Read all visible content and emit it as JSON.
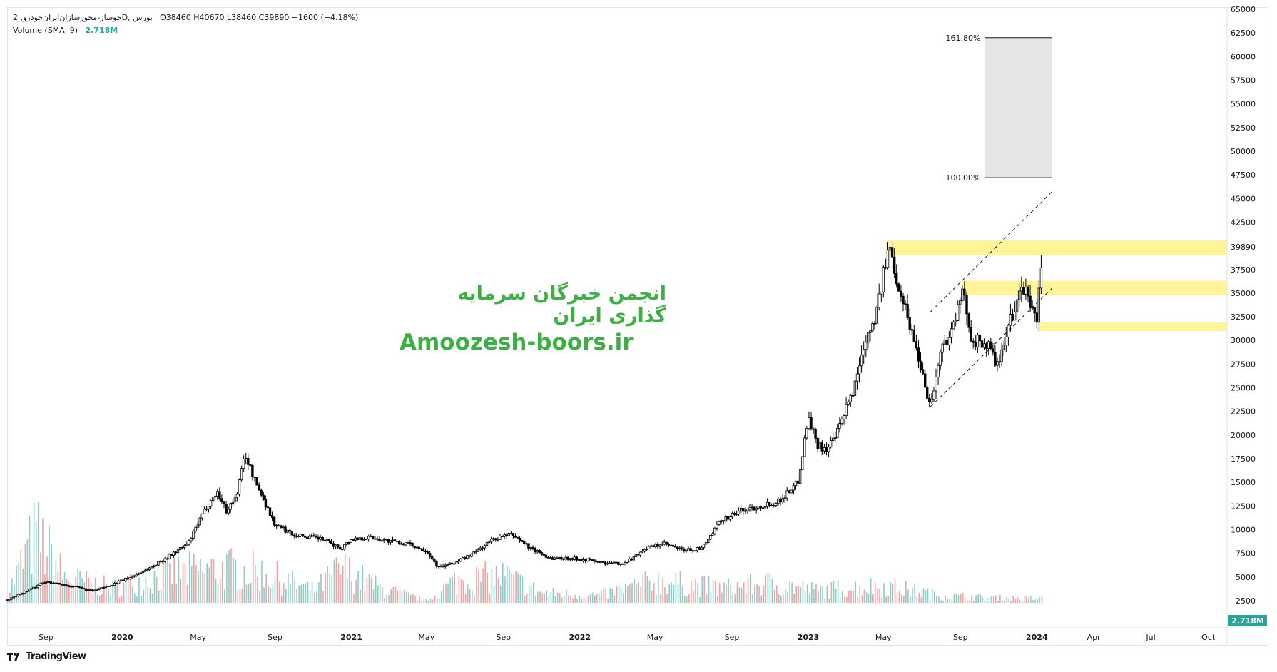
{
  "legend": {
    "symbol_line": "2 ,ﺧﻮﺳﺎز-ﻣﺤﻮرﺳﺎزان‌اﯾﺮان‌ﺧﻮدروD, ﺑﻮرس",
    "ohlc": "O38460  H40670  L38460  C39890  +1600 (+4.18%)",
    "volume_label": "Volume (SMA, 9)",
    "volume_value": "2.718M"
  },
  "watermark": {
    "persian": "انجمن خبرگان سرمایه گذاری ایران",
    "site": "Amoozesh-boors.ir"
  },
  "footer": {
    "brand": "TradingView",
    "logo_icon": "tradingview-logo-icon"
  },
  "colors": {
    "up": "#26a69a",
    "down": "#ef5350",
    "candle": "#000000",
    "zone": "#fff176",
    "fib_box": "#e5e5e5",
    "watermark": "#3cb043",
    "price_label_bg": "#26a69a"
  },
  "chart_data": {
    "type": "candlestick",
    "title": "",
    "y_ticks": [
      "65000",
      "62500",
      "60000",
      "57500",
      "55000",
      "52500",
      "50000",
      "47500",
      "45000",
      "42500",
      "39890",
      "37500",
      "35000",
      "32500",
      "30000",
      "27500",
      "25000",
      "22500",
      "20000",
      "17500",
      "15000",
      "12500",
      "10000",
      "7500",
      "5000",
      "2500"
    ],
    "x_ticks": [
      "Sep",
      "2020",
      "May",
      "Sep",
      "2021",
      "May",
      "Sep",
      "2022",
      "May",
      "Sep",
      "2023",
      "May",
      "Sep",
      "2024",
      "Apr",
      "Jul",
      "Oct"
    ],
    "last_price_label": "39890",
    "volume_label": "2.718M",
    "ylim": [
      0,
      65000
    ],
    "price_path": [
      [
        "2019-07-01",
        2600
      ],
      [
        "2019-09-01",
        4500
      ],
      [
        "2019-10-15",
        4000
      ],
      [
        "2019-11-15",
        3500
      ],
      [
        "2019-12-15",
        4200
      ],
      [
        "2020-01-15",
        5000
      ],
      [
        "2020-02-15",
        6000
      ],
      [
        "2020-03-15",
        7200
      ],
      [
        "2020-04-15",
        8500
      ],
      [
        "2020-05-15",
        12500
      ],
      [
        "2020-06-01",
        14000
      ],
      [
        "2020-06-15",
        12000
      ],
      [
        "2020-07-01",
        13500
      ],
      [
        "2020-07-15",
        18000
      ],
      [
        "2020-08-01",
        15000
      ],
      [
        "2020-08-15",
        13000
      ],
      [
        "2020-09-01",
        10500
      ],
      [
        "2020-10-01",
        9500
      ],
      [
        "2020-11-15",
        9000
      ],
      [
        "2020-12-15",
        8000
      ],
      [
        "2021-01-01",
        9000
      ],
      [
        "2021-02-01",
        9200
      ],
      [
        "2021-03-01",
        8800
      ],
      [
        "2021-04-01",
        8500
      ],
      [
        "2021-05-01",
        7800
      ],
      [
        "2021-05-20",
        6000
      ],
      [
        "2021-06-15",
        6500
      ],
      [
        "2021-07-15",
        7500
      ],
      [
        "2021-08-15",
        9000
      ],
      [
        "2021-09-15",
        9500
      ],
      [
        "2021-10-15",
        8000
      ],
      [
        "2021-11-15",
        7000
      ],
      [
        "2021-12-15",
        7000
      ],
      [
        "2022-01-15",
        6800
      ],
      [
        "2022-02-15",
        6400
      ],
      [
        "2022-03-15",
        6500
      ],
      [
        "2022-04-15",
        8000
      ],
      [
        "2022-05-15",
        8500
      ],
      [
        "2022-06-15",
        7800
      ],
      [
        "2022-07-15",
        8000
      ],
      [
        "2022-08-15",
        11000
      ],
      [
        "2022-09-15",
        12000
      ],
      [
        "2022-10-15",
        12500
      ],
      [
        "2022-11-15",
        13000
      ],
      [
        "2022-12-15",
        15000
      ],
      [
        "2023-01-01",
        22000
      ],
      [
        "2023-01-15",
        19000
      ],
      [
        "2023-02-01",
        18500
      ],
      [
        "2023-02-15",
        20000
      ],
      [
        "2023-03-15",
        25000
      ],
      [
        "2023-04-01",
        30000
      ],
      [
        "2023-04-20",
        33000
      ],
      [
        "2023-05-10",
        40000
      ],
      [
        "2023-05-25",
        36000
      ],
      [
        "2023-06-15",
        31000
      ],
      [
        "2023-07-01",
        27000
      ],
      [
        "2023-07-15",
        23000
      ],
      [
        "2023-08-01",
        29000
      ],
      [
        "2023-08-20",
        31500
      ],
      [
        "2023-09-05",
        35000
      ],
      [
        "2023-09-20",
        30000
      ],
      [
        "2023-10-15",
        29500
      ],
      [
        "2023-11-01",
        27000
      ],
      [
        "2023-11-15",
        31000
      ],
      [
        "2023-12-01",
        34500
      ],
      [
        "2023-12-15",
        35500
      ],
      [
        "2024-01-01",
        31500
      ],
      [
        "2024-01-10",
        39890
      ]
    ],
    "volume_path": [
      [
        "2019-07-01",
        2.0
      ],
      [
        "2019-08-15",
        14.0
      ],
      [
        "2019-10-01",
        5.0
      ],
      [
        "2019-12-15",
        3.0
      ],
      [
        "2020-03-15",
        6.0
      ],
      [
        "2020-06-15",
        7.0
      ],
      [
        "2020-08-15",
        6.0
      ],
      [
        "2020-11-01",
        2.5
      ],
      [
        "2020-12-15",
        7.0
      ],
      [
        "2021-02-15",
        3.0
      ],
      [
        "2021-05-01",
        0.4
      ],
      [
        "2021-06-15",
        4.5
      ],
      [
        "2021-09-01",
        5.5
      ],
      [
        "2021-11-01",
        2.0
      ],
      [
        "2022-02-01",
        1.5
      ],
      [
        "2022-05-01",
        4.5
      ],
      [
        "2022-08-15",
        3.0
      ],
      [
        "2022-11-01",
        4.0
      ],
      [
        "2023-01-15",
        2.5
      ],
      [
        "2023-05-01",
        3.5
      ],
      [
        "2023-08-01",
        1.5
      ],
      [
        "2023-11-01",
        1.0
      ],
      [
        "2024-01-10",
        0.8
      ]
    ],
    "zones": [
      {
        "from": "2023-05-05",
        "to": "2024-10-31",
        "y_low": 39000,
        "y_high": 40600
      },
      {
        "from": "2023-09-05",
        "to": "2024-10-31",
        "y_low": 34800,
        "y_high": 36300
      },
      {
        "from": "2024-01-05",
        "to": "2024-10-31",
        "y_low": 31000,
        "y_high": 31900
      }
    ],
    "channel": {
      "upper": [
        [
          "2023-07-15",
          33000
        ],
        [
          "2024-01-25",
          45700
        ]
      ],
      "lower": [
        [
          "2023-07-15",
          23000
        ],
        [
          "2024-01-25",
          35500
        ]
      ]
    },
    "fib_extension": {
      "from": "2023-10-10",
      "to": "2024-01-25",
      "levels": [
        {
          "ratio": 1.0,
          "price": 47200,
          "label": "100.00%"
        },
        {
          "ratio": 1.618,
          "price": 62000,
          "label": "161.80%"
        }
      ]
    }
  }
}
